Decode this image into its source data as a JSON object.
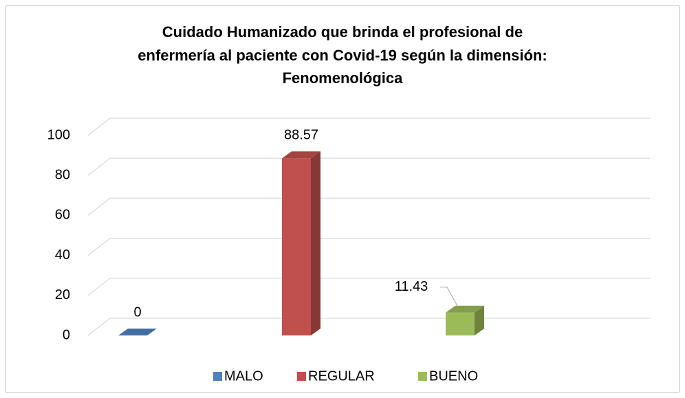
{
  "chart_data": {
    "type": "bar3d",
    "title": [
      "Cuidado Humanizado que brinda el profesional de",
      "enfermería al paciente con Covid-19 según la dimensión:",
      "Fenomenológica"
    ],
    "categories": [
      null
    ],
    "series": [
      {
        "name": "MALO",
        "color": "#4f81bd",
        "values": [
          0
        ]
      },
      {
        "name": "REGULAR",
        "color": "#c0504d",
        "values": [
          88.57
        ]
      },
      {
        "name": "BUENO",
        "color": "#9bbb59",
        "values": [
          11.43
        ]
      }
    ],
    "ylim": [
      0,
      100
    ],
    "yticks": [
      0,
      20,
      40,
      60,
      80,
      100
    ],
    "grid": true,
    "legend": "bottom"
  }
}
